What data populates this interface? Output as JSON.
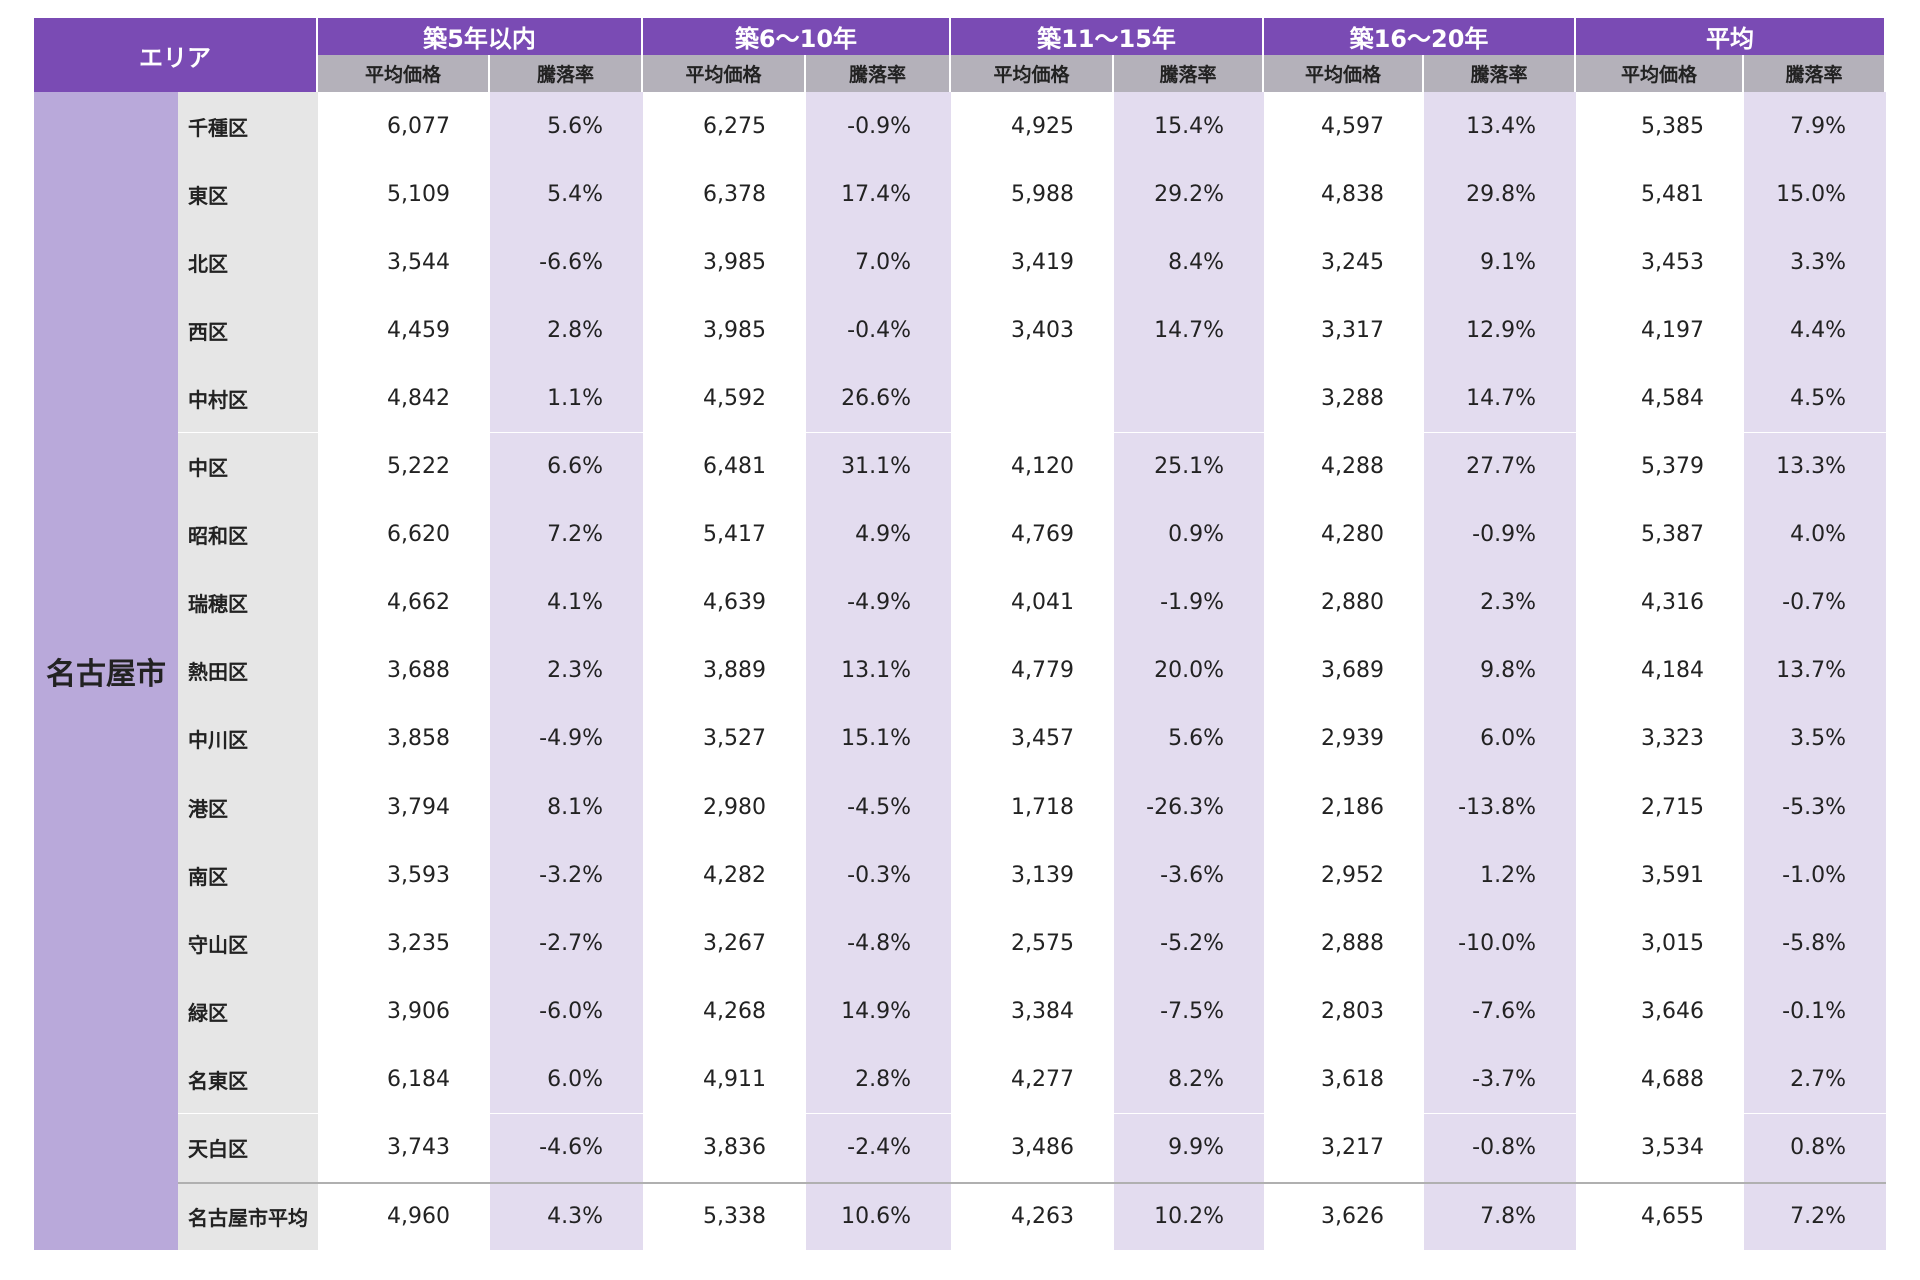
{
  "header": {
    "area": "エリア",
    "groups": [
      "築5年以内",
      "築6〜10年",
      "築11〜15年",
      "築16〜20年",
      "平均"
    ],
    "subheaders": [
      "平均価格",
      "騰落率"
    ]
  },
  "city": "名古屋市",
  "rows": [
    {
      "name": "千種区",
      "cells": [
        "6,077",
        "5.6%",
        "6,275",
        "-0.9%",
        "4,925",
        "15.4%",
        "4,597",
        "13.4%",
        "5,385",
        "7.9%"
      ]
    },
    {
      "name": "東区",
      "cells": [
        "5,109",
        "5.4%",
        "6,378",
        "17.4%",
        "5,988",
        "29.2%",
        "4,838",
        "29.8%",
        "5,481",
        "15.0%"
      ]
    },
    {
      "name": "北区",
      "cells": [
        "3,544",
        "-6.6%",
        "3,985",
        "7.0%",
        "3,419",
        "8.4%",
        "3,245",
        "9.1%",
        "3,453",
        "3.3%"
      ]
    },
    {
      "name": "西区",
      "cells": [
        "4,459",
        "2.8%",
        "3,985",
        "-0.4%",
        "3,403",
        "14.7%",
        "3,317",
        "12.9%",
        "4,197",
        "4.4%"
      ]
    },
    {
      "name": "中村区",
      "cells": [
        "4,842",
        "1.1%",
        "4,592",
        "26.6%",
        null,
        null,
        "3,288",
        "14.7%",
        "4,584",
        "4.5%"
      ]
    },
    {
      "name": "中区",
      "cells": [
        "5,222",
        "6.6%",
        "6,481",
        "31.1%",
        "4,120",
        "25.1%",
        "4,288",
        "27.7%",
        "5,379",
        "13.3%"
      ]
    },
    {
      "name": "昭和区",
      "cells": [
        "6,620",
        "7.2%",
        "5,417",
        "4.9%",
        "4,769",
        "0.9%",
        "4,280",
        "-0.9%",
        "5,387",
        "4.0%"
      ]
    },
    {
      "name": "瑞穂区",
      "cells": [
        "4,662",
        "4.1%",
        "4,639",
        "-4.9%",
        "4,041",
        "-1.9%",
        "2,880",
        "2.3%",
        "4,316",
        "-0.7%"
      ]
    },
    {
      "name": "熱田区",
      "cells": [
        "3,688",
        "2.3%",
        "3,889",
        "13.1%",
        "4,779",
        "20.0%",
        "3,689",
        "9.8%",
        "4,184",
        "13.7%"
      ]
    },
    {
      "name": "中川区",
      "cells": [
        "3,858",
        "-4.9%",
        "3,527",
        "15.1%",
        "3,457",
        "5.6%",
        "2,939",
        "6.0%",
        "3,323",
        "3.5%"
      ]
    },
    {
      "name": "港区",
      "cells": [
        "3,794",
        "8.1%",
        "2,980",
        "-4.5%",
        "1,718",
        "-26.3%",
        "2,186",
        "-13.8%",
        "2,715",
        "-5.3%"
      ]
    },
    {
      "name": "南区",
      "cells": [
        "3,593",
        "-3.2%",
        "4,282",
        "-0.3%",
        "3,139",
        "-3.6%",
        "2,952",
        "1.2%",
        "3,591",
        "-1.0%"
      ]
    },
    {
      "name": "守山区",
      "cells": [
        "3,235",
        "-2.7%",
        "3,267",
        "-4.8%",
        "2,575",
        "-5.2%",
        "2,888",
        "-10.0%",
        "3,015",
        "-5.8%"
      ]
    },
    {
      "name": "緑区",
      "cells": [
        "3,906",
        "-6.0%",
        "4,268",
        "14.9%",
        "3,384",
        "-7.5%",
        "2,803",
        "-7.6%",
        "3,646",
        "-0.1%"
      ]
    },
    {
      "name": "名東区",
      "cells": [
        "6,184",
        "6.0%",
        "4,911",
        "2.8%",
        "4,277",
        "8.2%",
        "3,618",
        "-3.7%",
        "4,688",
        "2.7%"
      ]
    },
    {
      "name": "天白区",
      "cells": [
        "3,743",
        "-4.6%",
        "3,836",
        "-2.4%",
        "3,486",
        "9.9%",
        "3,217",
        "-0.8%",
        "3,534",
        "0.8%"
      ]
    }
  ],
  "total": {
    "name": "名古屋市平均",
    "cells": [
      "4,960",
      "4.3%",
      "5,338",
      "10.6%",
      "4,263",
      "10.2%",
      "3,626",
      "7.8%",
      "4,655",
      "7.2%"
    ]
  }
}
